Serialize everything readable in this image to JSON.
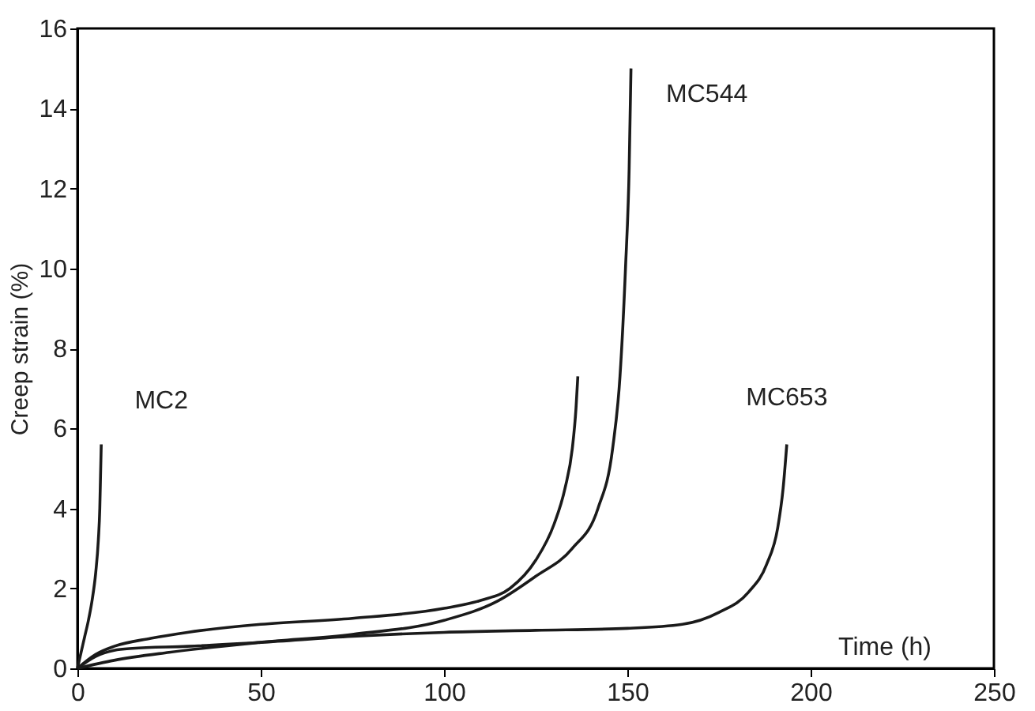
{
  "chart_data": {
    "type": "line",
    "xlabel": "Time (h)",
    "ylabel": "Creep strain (%)",
    "xlim": [
      0,
      250
    ],
    "ylim": [
      0,
      16
    ],
    "xticks": [
      0,
      50,
      100,
      150,
      200,
      250
    ],
    "yticks": [
      0,
      2,
      4,
      6,
      8,
      10,
      12,
      14,
      16
    ],
    "grid": false,
    "marker": "none",
    "line_style": "solid",
    "series": [
      {
        "name": "MC2",
        "color": "#1a1a1a",
        "x": [
          0,
          1,
          2,
          3,
          4,
          5,
          5.7,
          6.1,
          6.3,
          6.5
        ],
        "values": [
          0,
          0.4,
          0.8,
          1.2,
          1.7,
          2.4,
          3.2,
          4.0,
          4.8,
          5.6
        ]
      },
      {
        "color": "#1a1a1a",
        "x": [
          0,
          5,
          10,
          20,
          30,
          50,
          75,
          100,
          110,
          118,
          125,
          130,
          133,
          135,
          136,
          136.5
        ],
        "values": [
          0,
          0.35,
          0.55,
          0.75,
          0.9,
          1.1,
          1.25,
          1.5,
          1.7,
          2.0,
          2.7,
          3.6,
          4.5,
          5.5,
          6.5,
          7.3
        ]
      },
      {
        "name": "MC544",
        "color": "#1a1a1a",
        "x": [
          0,
          10,
          25,
          50,
          75,
          100,
          115,
          125,
          135,
          142,
          146,
          148,
          149.5,
          150.5,
          151
        ],
        "values": [
          0,
          0.2,
          0.4,
          0.65,
          0.85,
          1.2,
          1.7,
          2.3,
          3.0,
          4.0,
          5.5,
          7.3,
          10,
          12.5,
          15.0
        ]
      },
      {
        "name": "MC653",
        "color": "#1a1a1a",
        "x": [
          0,
          5,
          10,
          15,
          30,
          50,
          75,
          100,
          125,
          150,
          165,
          175,
          183,
          188,
          191,
          192.5,
          193.5
        ],
        "values": [
          0,
          0.3,
          0.45,
          0.5,
          0.55,
          0.65,
          0.8,
          0.9,
          0.95,
          1.0,
          1.1,
          1.4,
          1.9,
          2.6,
          3.5,
          4.5,
          5.6
        ]
      }
    ]
  }
}
